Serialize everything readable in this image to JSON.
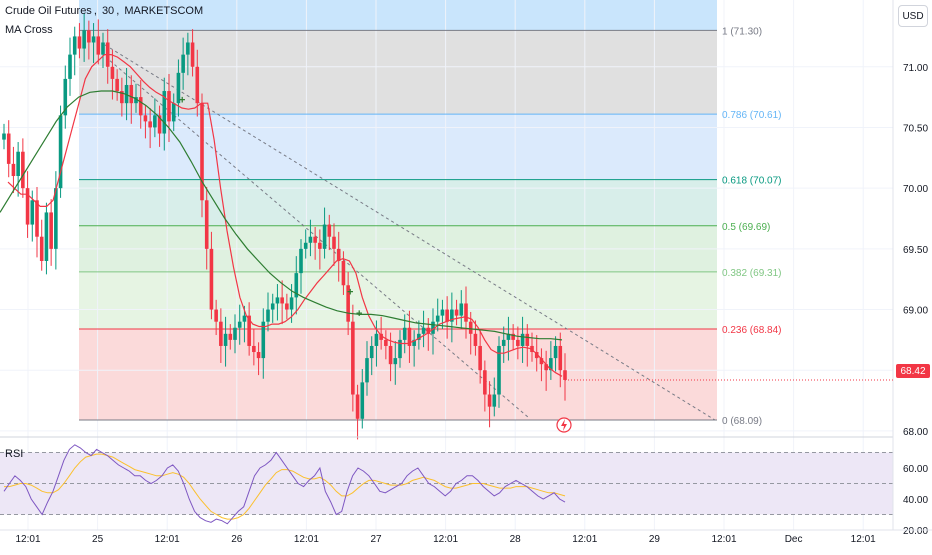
{
  "header": {
    "symbol": "Crude Oil Futures",
    "sep1": ",",
    "interval": "30",
    "sep2": ",",
    "exchange": "MARKETSCOM",
    "indicator": "MA Cross",
    "currency_button": "USD"
  },
  "rsi_pane": {
    "label": "RSI"
  },
  "last_price": "68.42",
  "colors": {
    "up": "#089981",
    "down": "#f23645",
    "ma_fast": "#f23645",
    "ma_slow": "#2e7d32",
    "rsi_line": "#7e57c2",
    "rsi_ma": "#fbc02d",
    "rsi_band": "#ede7f6"
  },
  "chart_data": [
    {
      "type": "candlestick",
      "title": "Crude Oil Futures, 30, MARKETSCOM",
      "y_axis": {
        "ticks": [
          "71.00",
          "70.50",
          "70.00",
          "69.50",
          "69.00",
          "68.50",
          "68.00"
        ],
        "ylim": [
          67.95,
          71.55
        ],
        "side": "right"
      },
      "x_axis": {
        "ticks": [
          "12:01",
          "25",
          "12:01",
          "26",
          "12:01",
          "27",
          "12:01",
          "28",
          "12:01",
          "29",
          "12:01",
          "Dec",
          "12:01"
        ]
      },
      "fibonacci": {
        "levels": [
          {
            "ratio": "1",
            "price": 71.3,
            "label": "1 (71.30)"
          },
          {
            "ratio": "0.786",
            "price": 70.61,
            "label": "0.786 (70.61)"
          },
          {
            "ratio": "0.618",
            "price": 70.07,
            "label": "0.618 (70.07)"
          },
          {
            "ratio": "0.5",
            "price": 69.69,
            "label": "0.5 (69.69)"
          },
          {
            "ratio": "0.382",
            "price": 69.31,
            "label": "0.382 (69.31)"
          },
          {
            "ratio": "0.236",
            "price": 68.84,
            "label": "0.236 (68.84)"
          },
          {
            "ratio": "0",
            "price": 68.09,
            "label": "0 (68.09)"
          }
        ],
        "zone_colors": [
          "#e0e0e0",
          "#dbeafc",
          "#d8eeea",
          "#dff1e0",
          "#e6f4e3",
          "#fbdada"
        ],
        "line_colors": [
          "#787b86",
          "#64b5f6",
          "#089981",
          "#4caf50",
          "#81c784",
          "#f23645",
          "#787b86"
        ]
      },
      "last_price": 68.42,
      "closes": [
        70.45,
        70.2,
        70.1,
        70.3,
        70.0,
        69.7,
        69.9,
        69.6,
        69.4,
        69.8,
        69.5,
        70.0,
        70.6,
        70.9,
        71.1,
        71.25,
        71.15,
        71.3,
        71.2,
        71.25,
        71.1,
        71.2,
        71.0,
        70.9,
        70.8,
        70.7,
        70.85,
        70.7,
        70.75,
        70.6,
        70.55,
        70.5,
        70.6,
        70.45,
        70.8,
        70.55,
        70.7,
        70.95,
        71.1,
        71.2,
        71.0,
        70.7,
        69.9,
        69.5,
        69.0,
        68.9,
        68.7,
        68.8,
        68.75,
        68.85,
        68.9,
        68.95,
        68.7,
        68.65,
        68.6,
        68.9,
        69.0,
        69.05,
        69.1,
        69.05,
        69.0,
        69.1,
        69.3,
        69.5,
        69.55,
        69.6,
        69.55,
        69.5,
        69.7,
        69.6,
        69.5,
        69.4,
        69.2,
        68.9,
        68.3,
        68.1,
        68.4,
        68.6,
        68.7,
        68.8,
        68.75,
        68.7,
        68.55,
        68.6,
        68.75,
        68.85,
        68.7,
        68.75,
        68.8,
        68.85,
        68.8,
        68.9,
        68.95,
        69.0,
        68.9,
        69.0,
        68.95,
        69.05,
        68.9,
        68.8,
        68.7,
        68.5,
        68.3,
        68.2,
        68.3,
        68.7,
        68.75,
        68.8,
        68.75,
        68.7,
        68.8,
        68.7,
        68.65,
        68.6,
        68.55,
        68.5,
        68.6,
        68.7,
        68.5,
        68.42
      ],
      "ma_fast": [
        70.05,
        70.0,
        69.95,
        69.95,
        69.9,
        69.85,
        69.85,
        69.9,
        70.1,
        70.3,
        70.5,
        70.7,
        70.9,
        71.0,
        71.05,
        71.1,
        71.1,
        71.08,
        71.04,
        71.0,
        70.94,
        70.88,
        70.83,
        70.79,
        70.76,
        70.72,
        70.69,
        70.66,
        70.65,
        70.66,
        70.7,
        70.7,
        70.4,
        70.0,
        69.65,
        69.35,
        69.1,
        68.95,
        68.88,
        68.86,
        68.86,
        68.88,
        68.88,
        68.9,
        68.94,
        69.0,
        69.08,
        69.15,
        69.22,
        69.28,
        69.34,
        69.4,
        69.42,
        69.4,
        69.3,
        69.1,
        68.95,
        68.85,
        68.78,
        68.75,
        68.73,
        68.72,
        68.72,
        68.74,
        68.77,
        68.8,
        68.84,
        68.88,
        68.9,
        68.92,
        68.93,
        68.94,
        68.92,
        68.85,
        68.75,
        68.67,
        68.64,
        68.64,
        68.66,
        68.68,
        68.69,
        68.68,
        68.64,
        68.58,
        68.52,
        68.48,
        68.45
      ],
      "ma_slow": [
        69.8,
        69.95,
        70.1,
        70.25,
        70.4,
        70.55,
        70.67,
        70.75,
        70.79,
        70.8,
        70.8,
        70.78,
        70.74,
        70.68,
        70.6,
        70.5,
        70.38,
        70.22,
        70.05,
        69.9,
        69.75,
        69.62,
        69.5,
        69.4,
        69.3,
        69.22,
        69.15,
        69.1,
        69.06,
        69.02,
        68.99,
        68.97,
        68.96,
        68.96,
        68.95,
        68.93,
        68.91,
        68.89,
        68.88,
        68.87,
        68.86,
        68.85,
        68.84,
        68.83,
        68.82,
        68.8,
        68.78,
        68.77,
        68.76,
        68.76,
        68.75
      ]
    },
    {
      "type": "line",
      "title": "RSI",
      "y_axis": {
        "ticks": [
          "60.00",
          "40.00",
          "20.00"
        ],
        "ylim": [
          20,
          80
        ]
      },
      "bands": {
        "upper": 70,
        "middle": 50,
        "lower": 30
      },
      "series": [
        {
          "values": [
            45,
            50,
            55,
            52,
            48,
            40,
            35,
            30,
            38,
            45,
            55,
            65,
            72,
            75,
            73,
            70,
            68,
            72,
            70,
            68,
            65,
            62,
            60,
            58,
            55,
            55,
            52,
            50,
            52,
            55,
            60,
            62,
            58,
            50,
            40,
            32,
            28,
            26,
            25,
            27,
            26,
            24,
            28,
            32,
            35,
            45,
            55,
            60,
            62,
            65,
            70,
            65,
            60,
            55,
            50,
            48,
            52,
            55,
            60,
            45,
            38,
            30,
            32,
            45,
            55,
            60,
            58,
            55,
            50,
            45,
            44,
            46,
            48,
            50,
            55,
            58,
            60,
            55,
            50,
            48,
            45,
            42,
            45,
            50,
            52,
            55,
            55,
            52,
            48,
            45,
            42,
            44,
            48,
            50,
            52,
            50,
            48,
            45,
            42,
            40,
            42,
            44,
            40,
            38
          ]
        },
        {
          "values": [
            48,
            48,
            49,
            50,
            50,
            49,
            47,
            45,
            44,
            44,
            46,
            50,
            55,
            60,
            64,
            67,
            68,
            69,
            69,
            68,
            67,
            65,
            63,
            61,
            59,
            58,
            57,
            56,
            55,
            55,
            56,
            57,
            56,
            54,
            50,
            45,
            40,
            36,
            32,
            30,
            28,
            27,
            27,
            28,
            30,
            34,
            39,
            44,
            49,
            53,
            57,
            59,
            59,
            58,
            56,
            54,
            53,
            53,
            54,
            52,
            49,
            45,
            42,
            42,
            44,
            47,
            50,
            52,
            52,
            51,
            50,
            49,
            49,
            49,
            50,
            52,
            53,
            54,
            53,
            52,
            50,
            48,
            47,
            47,
            48,
            49,
            50,
            50,
            50,
            49,
            48,
            47,
            47,
            47,
            48,
            48,
            48,
            47,
            46,
            45,
            44,
            44,
            43,
            42
          ]
        }
      ]
    }
  ]
}
